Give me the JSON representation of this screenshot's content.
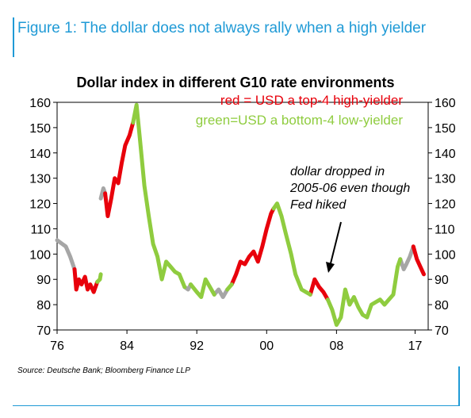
{
  "figure": {
    "title": "Figure 1: The dollar does not always rally when a high yielder",
    "source": "Source: Deutsche Bank; Bloomberg Finance LLP"
  },
  "colors": {
    "accent": "#1f9ad6",
    "red": "#e8000b",
    "green": "#8fcc3f",
    "gray": "#a6a6a6"
  },
  "chart_data": {
    "type": "line",
    "title": "Dollar index in different G10 rate environments",
    "legend": [
      "red = USD a top-4 high-yielder",
      "green=USD a bottom-4 low-yielder"
    ],
    "legend_placement": "top-right",
    "annotation": [
      "dollar dropped in",
      "2005-06 even though",
      "Fed hiked"
    ],
    "xlim": [
      1976,
      2018.5
    ],
    "ylim": [
      70,
      160
    ],
    "x_ticks": [
      1976,
      1984,
      1992,
      2000,
      2008,
      2017
    ],
    "x_tick_labels": [
      "76",
      "84",
      "92",
      "00",
      "08",
      "17"
    ],
    "y_ticks": [
      70,
      80,
      90,
      100,
      110,
      120,
      130,
      140,
      150,
      160
    ],
    "grid": false,
    "series": [
      {
        "name": "gray",
        "segments": [
          [
            [
              1976.0,
              105.5
            ],
            [
              1976.6,
              104
            ],
            [
              1977.0,
              103
            ],
            [
              1977.5,
              99
            ],
            [
              1978.0,
              94
            ]
          ],
          [
            [
              1981.0,
              122
            ],
            [
              1981.3,
              126
            ],
            [
              1981.5,
              124
            ]
          ],
          [
            [
              1990.6,
              87
            ],
            [
              1991.0,
              86
            ],
            [
              1991.3,
              88
            ]
          ],
          [
            [
              1994.0,
              84
            ],
            [
              1994.5,
              86
            ],
            [
              1995.0,
              83
            ],
            [
              1995.5,
              86
            ]
          ],
          [
            [
              2015.3,
              98
            ],
            [
              2015.7,
              94
            ],
            [
              2016.0,
              96
            ],
            [
              2016.4,
              99
            ],
            [
              2016.8,
              103
            ]
          ]
        ]
      },
      {
        "name": "red",
        "segments": [
          [
            [
              1978.0,
              94
            ],
            [
              1978.2,
              86
            ],
            [
              1978.5,
              90
            ],
            [
              1978.8,
              88
            ],
            [
              1979.2,
              91
            ],
            [
              1979.5,
              86
            ],
            [
              1979.8,
              88
            ],
            [
              1980.2,
              85
            ],
            [
              1980.6,
              89
            ]
          ],
          [
            [
              1981.5,
              124
            ],
            [
              1981.8,
              115
            ],
            [
              1982.2,
              122
            ],
            [
              1982.6,
              130
            ],
            [
              1983.0,
              128
            ],
            [
              1983.4,
              136
            ],
            [
              1983.8,
              143
            ],
            [
              1984.3,
              147
            ],
            [
              1984.7,
              152
            ]
          ],
          [
            [
              1996.0,
              88
            ],
            [
              1996.5,
              92
            ],
            [
              1997.0,
              97
            ],
            [
              1997.5,
              96
            ],
            [
              1998.0,
              99
            ],
            [
              1998.5,
              101
            ],
            [
              1999.0,
              97
            ],
            [
              1999.5,
              103
            ],
            [
              2000.0,
              110
            ],
            [
              2000.5,
              116
            ],
            [
              2000.8,
              118
            ]
          ],
          [
            [
              2005.0,
              84
            ],
            [
              2005.5,
              90
            ],
            [
              2006.0,
              87
            ],
            [
              2006.5,
              85
            ],
            [
              2007.0,
              82
            ]
          ],
          [
            [
              2016.8,
              103
            ],
            [
              2017.2,
              98
            ],
            [
              2017.6,
              95
            ],
            [
              2018.0,
              92
            ]
          ]
        ]
      },
      {
        "name": "green",
        "segments": [
          [
            [
              1980.6,
              89
            ],
            [
              1980.9,
              90
            ],
            [
              1981.0,
              92
            ]
          ],
          [
            [
              1984.7,
              152
            ],
            [
              1985.1,
              159
            ],
            [
              1985.5,
              145
            ],
            [
              1986.0,
              127
            ],
            [
              1986.5,
              115
            ],
            [
              1987.0,
              104
            ],
            [
              1987.5,
              99
            ],
            [
              1988.0,
              90
            ],
            [
              1988.5,
              97
            ],
            [
              1989.0,
              95
            ],
            [
              1989.5,
              93
            ],
            [
              1990.0,
              92
            ],
            [
              1990.6,
              87
            ]
          ],
          [
            [
              1991.3,
              88
            ],
            [
              1992.0,
              85
            ],
            [
              1992.5,
              83
            ],
            [
              1993.0,
              90
            ],
            [
              1993.5,
              87
            ],
            [
              1994.0,
              84
            ]
          ],
          [
            [
              1995.5,
              86
            ],
            [
              1996.0,
              88
            ]
          ],
          [
            [
              2000.8,
              118
            ],
            [
              2001.2,
              120
            ],
            [
              2001.7,
              115
            ],
            [
              2002.2,
              108
            ],
            [
              2002.8,
              100
            ],
            [
              2003.3,
              92
            ],
            [
              2004.0,
              86
            ],
            [
              2004.5,
              85
            ],
            [
              2005.0,
              84
            ]
          ],
          [
            [
              2007.0,
              82
            ],
            [
              2007.5,
              78
            ],
            [
              2008.0,
              72
            ],
            [
              2008.5,
              75
            ],
            [
              2009.0,
              86
            ],
            [
              2009.5,
              80
            ],
            [
              2010.0,
              83
            ],
            [
              2010.5,
              79
            ],
            [
              2011.0,
              76
            ],
            [
              2011.5,
              75
            ],
            [
              2012.0,
              80
            ],
            [
              2012.5,
              81
            ],
            [
              2013.0,
              82
            ],
            [
              2013.5,
              80
            ],
            [
              2014.0,
              82
            ],
            [
              2014.5,
              84
            ],
            [
              2015.0,
              95
            ],
            [
              2015.3,
              98
            ]
          ]
        ]
      }
    ]
  }
}
